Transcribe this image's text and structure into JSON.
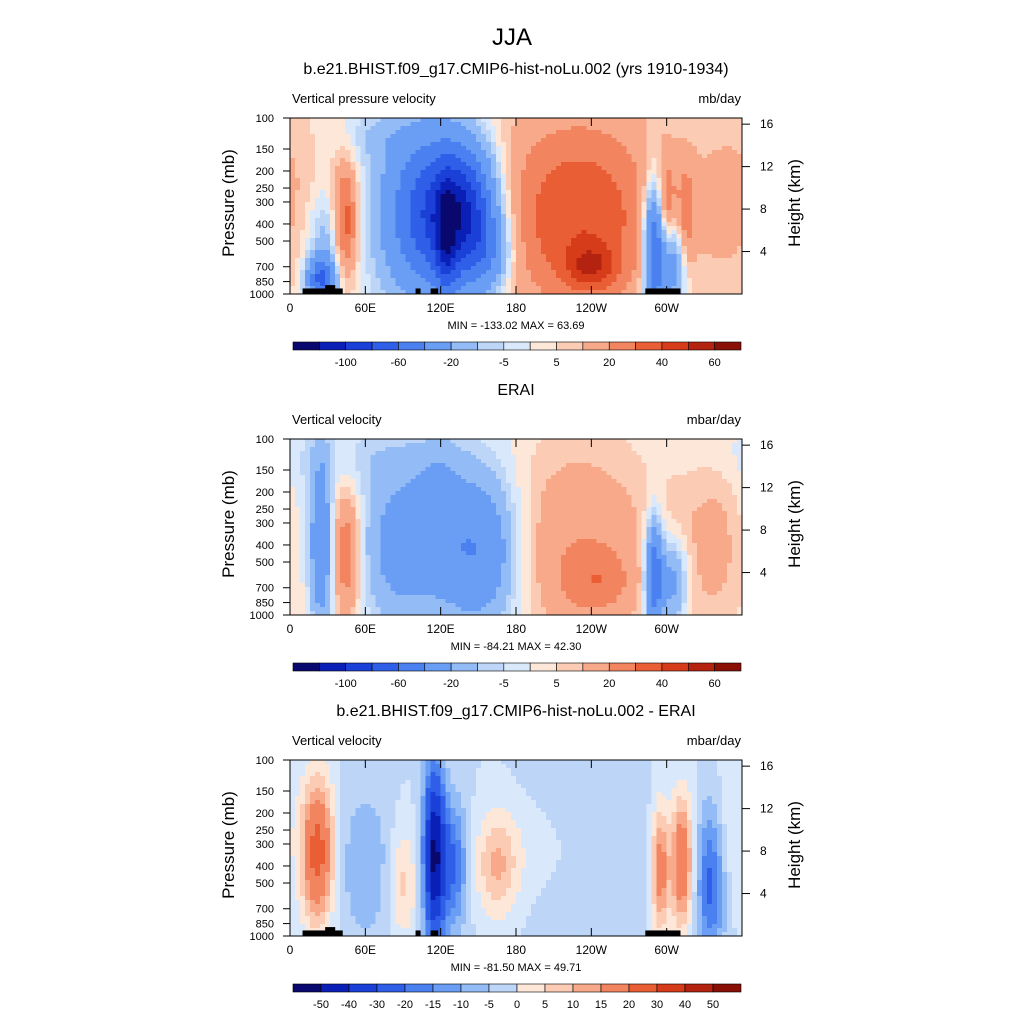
{
  "figure": {
    "title": "JJA",
    "x_ticks": [
      "0",
      "60E",
      "120E",
      "180",
      "120W",
      "60W"
    ],
    "x_tick_lon": [
      0,
      60,
      120,
      180,
      240,
      300
    ],
    "x_range": [
      0,
      360
    ],
    "p_ticks": [
      100,
      150,
      200,
      250,
      300,
      400,
      500,
      700,
      850,
      1000
    ],
    "h_ticks": [
      4,
      8,
      12,
      16
    ],
    "left_label": "Pressure (mb)",
    "right_label": "Height (km)",
    "mask_note": "black blocks = topography"
  },
  "chart_data": [
    {
      "type": "heatmap",
      "panel_title": "b.e21.BHIST.f09_g17.CMIP6-hist-noLu.002 (yrs 1910-1934)",
      "left_text": "Vertical pressure velocity",
      "right_text": "mb/day",
      "stats": "MIN = -133.02  MAX =  63.69",
      "colorbar_labels": [
        "-100",
        "-60",
        "-20",
        "-5",
        "5",
        "20",
        "40",
        "60"
      ],
      "levels": [
        -120,
        -100,
        -80,
        -60,
        -40,
        -20,
        -10,
        -5,
        0,
        5,
        10,
        20,
        30,
        40,
        50,
        60
      ],
      "mask": true,
      "blobs": [
        {
          "lon": 30,
          "p": 500,
          "slon": 12,
          "sp": 0.5,
          "a": -20
        },
        {
          "lon": 25,
          "p": 820,
          "slon": 8,
          "sp": 0.2,
          "a": -60
        },
        {
          "lon": 44,
          "p": 400,
          "slon": 7,
          "sp": 0.55,
          "a": 40
        },
        {
          "lon": 15,
          "p": 300,
          "slon": 25,
          "sp": 1.0,
          "a": 6
        },
        {
          "lon": 70,
          "p": 130,
          "slon": 25,
          "sp": 0.25,
          "a": -8
        },
        {
          "lon": 110,
          "p": 350,
          "slon": 25,
          "sp": 0.75,
          "a": -70
        },
        {
          "lon": 140,
          "p": 350,
          "slon": 18,
          "sp": 0.6,
          "a": -80
        },
        {
          "lon": 125,
          "p": 500,
          "slon": 6,
          "sp": 0.55,
          "a": -40
        },
        {
          "lon": 160,
          "p": 600,
          "slon": 12,
          "sp": 0.35,
          "a": -25
        },
        {
          "lon": 230,
          "p": 380,
          "slon": 48,
          "sp": 0.95,
          "a": 35
        },
        {
          "lon": 240,
          "p": 700,
          "slon": 14,
          "sp": 0.2,
          "a": 25
        },
        {
          "lon": 225,
          "p": 200,
          "slon": 70,
          "sp": 1.2,
          "a": 5
        },
        {
          "lon": 290,
          "p": 550,
          "slon": 6,
          "sp": 0.6,
          "a": -70
        },
        {
          "lon": 305,
          "p": 650,
          "slon": 8,
          "sp": 0.45,
          "a": -40
        },
        {
          "lon": 300,
          "p": 350,
          "slon": 5,
          "sp": 0.45,
          "a": 25
        },
        {
          "lon": 315,
          "p": 400,
          "slon": 5,
          "sp": 0.5,
          "a": 22
        },
        {
          "lon": 345,
          "p": 300,
          "slon": 22,
          "sp": 1.0,
          "a": 7
        }
      ]
    },
    {
      "type": "heatmap",
      "panel_title": "ERAI",
      "left_text": "Vertical velocity",
      "right_text": "mbar/day",
      "stats": "MIN = -84.21  MAX =  42.30",
      "colorbar_labels": [
        "-100",
        "-60",
        "-20",
        "-5",
        "5",
        "20",
        "40",
        "60"
      ],
      "levels": [
        -120,
        -100,
        -80,
        -60,
        -40,
        -20,
        -10,
        -5,
        0,
        5,
        10,
        20,
        30,
        40,
        50,
        60
      ],
      "mask": false,
      "blobs": [
        {
          "lon": 25,
          "p": 400,
          "slon": 6,
          "sp": 0.75,
          "a": -40
        },
        {
          "lon": 45,
          "p": 450,
          "slon": 8,
          "sp": 0.6,
          "a": 30
        },
        {
          "lon": 10,
          "p": 300,
          "slon": 12,
          "sp": 0.8,
          "a": -6
        },
        {
          "lon": 90,
          "p": 400,
          "slon": 22,
          "sp": 0.7,
          "a": -30
        },
        {
          "lon": 150,
          "p": 430,
          "slon": 22,
          "sp": 0.7,
          "a": -42
        },
        {
          "lon": 120,
          "p": 250,
          "slon": 12,
          "sp": 0.6,
          "a": -15
        },
        {
          "lon": 230,
          "p": 400,
          "slon": 45,
          "sp": 1.0,
          "a": 18
        },
        {
          "lon": 245,
          "p": 650,
          "slon": 20,
          "sp": 0.3,
          "a": 15
        },
        {
          "lon": 290,
          "p": 600,
          "slon": 5,
          "sp": 0.5,
          "a": -60
        },
        {
          "lon": 305,
          "p": 650,
          "slon": 8,
          "sp": 0.4,
          "a": -30
        },
        {
          "lon": 340,
          "p": 400,
          "slon": 25,
          "sp": 0.9,
          "a": 12
        },
        {
          "lon": 60,
          "p": 130,
          "slon": 60,
          "sp": 0.3,
          "a": -6
        }
      ]
    },
    {
      "type": "heatmap",
      "panel_title": "b.e21.BHIST.f09_g17.CMIP6-hist-noLu.002 - ERAI",
      "left_text": "Vertical velocity",
      "right_text": "mbar/day",
      "stats": "MIN = -81.50  MAX =  49.71",
      "colorbar_labels": [
        "-50",
        "-40",
        "-30",
        "-20",
        "-15",
        "-10",
        "-5",
        "0",
        "5",
        "10",
        "15",
        "20",
        "30",
        "40",
        "50"
      ],
      "levels": [
        -50,
        -40,
        -30,
        -20,
        -15,
        -10,
        -5,
        0,
        5,
        10,
        15,
        20,
        30,
        40,
        50
      ],
      "mask": true,
      "blobs": [
        {
          "lon": 22,
          "p": 330,
          "slon": 9,
          "sp": 0.65,
          "a": 35
        },
        {
          "lon": 60,
          "p": 400,
          "slon": 15,
          "sp": 0.7,
          "a": -10
        },
        {
          "lon": 90,
          "p": 500,
          "slon": 8,
          "sp": 0.5,
          "a": 12
        },
        {
          "lon": 115,
          "p": 350,
          "slon": 6,
          "sp": 0.8,
          "a": -50
        },
        {
          "lon": 130,
          "p": 400,
          "slon": 8,
          "sp": 0.6,
          "a": -20
        },
        {
          "lon": 165,
          "p": 400,
          "slon": 12,
          "sp": 0.5,
          "a": 15
        },
        {
          "lon": 200,
          "p": 330,
          "slon": 30,
          "sp": 0.5,
          "a": 5
        },
        {
          "lon": 235,
          "p": 350,
          "slon": 40,
          "sp": 1.0,
          "a": -5
        },
        {
          "lon": 295,
          "p": 420,
          "slon": 5,
          "sp": 0.6,
          "a": 25
        },
        {
          "lon": 312,
          "p": 380,
          "slon": 6,
          "sp": 0.6,
          "a": 30
        },
        {
          "lon": 335,
          "p": 500,
          "slon": 8,
          "sp": 0.7,
          "a": -22
        },
        {
          "lon": 350,
          "p": 250,
          "slon": 10,
          "sp": 0.7,
          "a": 5
        }
      ]
    }
  ]
}
